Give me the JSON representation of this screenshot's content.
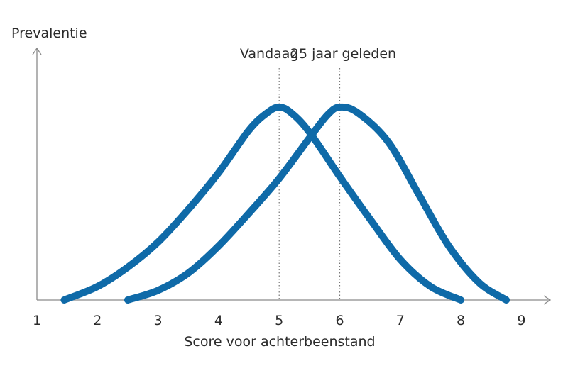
{
  "chart_data": {
    "type": "line",
    "ylabel": "Prevalentie",
    "xlabel": "Score voor achterbeenstand",
    "xlim": [
      1,
      9
    ],
    "ylim": [
      0,
      1
    ],
    "x_ticks": [
      "1",
      "2",
      "3",
      "4",
      "5",
      "6",
      "7",
      "8",
      "9"
    ],
    "grid": false,
    "series": [
      {
        "name": "Vandaag",
        "color": "#0f6aa8",
        "x": [
          1.45,
          2.0,
          2.5,
          3.0,
          3.5,
          4.0,
          4.5,
          4.8,
          5.0,
          5.2,
          5.5,
          6.0,
          6.5,
          7.0,
          7.5,
          8.0
        ],
        "y": [
          0.0,
          0.07,
          0.17,
          0.3,
          0.47,
          0.66,
          0.88,
          0.97,
          1.0,
          0.97,
          0.87,
          0.64,
          0.42,
          0.21,
          0.07,
          0.0
        ]
      },
      {
        "name": "25 jaar geleden",
        "color": "#0f6aa8",
        "x": [
          2.5,
          3.0,
          3.5,
          4.0,
          4.5,
          5.0,
          5.5,
          5.8,
          6.0,
          6.3,
          6.8,
          7.3,
          7.8,
          8.3,
          8.75
        ],
        "y": [
          0.0,
          0.05,
          0.14,
          0.28,
          0.45,
          0.63,
          0.84,
          0.96,
          1.0,
          0.97,
          0.82,
          0.55,
          0.28,
          0.09,
          0.0
        ]
      }
    ],
    "reference_lines": [
      {
        "x": 5,
        "label": "Vandaag"
      },
      {
        "x": 6,
        "label": "25 jaar geleden"
      }
    ]
  }
}
